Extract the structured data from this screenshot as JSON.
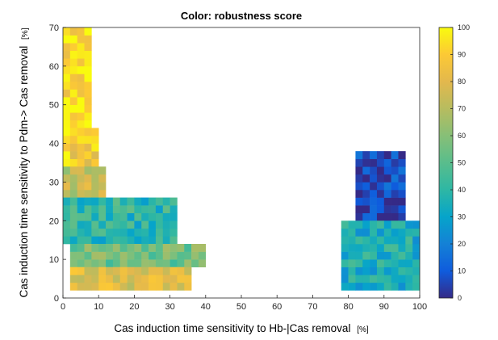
{
  "chart_data": {
    "type": "heatmap",
    "title": "Color: robustness score",
    "xlabel": "Cas induction time sensitivity to Hb-|Cas removal",
    "xlabel_unit": "[%]",
    "ylabel": "Cas induction time sensitivity to Pdm-> Cas removal",
    "ylabel_unit": "[%]",
    "xlim": [
      0,
      100
    ],
    "ylim": [
      0,
      70
    ],
    "xticks": [
      "0",
      "10",
      "20",
      "30",
      "40",
      "50",
      "60",
      "70",
      "80",
      "90",
      "100"
    ],
    "yticks": [
      "0",
      "10",
      "20",
      "30",
      "40",
      "50",
      "60",
      "70"
    ],
    "colorbar": {
      "label": "",
      "range": [
        0,
        100
      ],
      "ticks": [
        "0",
        "10",
        "20",
        "30",
        "40",
        "50",
        "60",
        "70",
        "80",
        "90",
        "100"
      ],
      "colormap": "parula"
    },
    "cell_size": [
      2,
      2
    ],
    "regions": [
      {
        "name": "",
        "x": [
          0,
          8
        ],
        "y": [
          44,
          70
        ],
        "score": 95
      },
      {
        "name": "",
        "x": [
          0,
          10
        ],
        "y": [
          34,
          44
        ],
        "score": 88
      },
      {
        "name": "",
        "x": [
          0,
          12
        ],
        "y": [
          26,
          34
        ],
        "score": 72
      },
      {
        "name": "",
        "x": [
          0,
          32
        ],
        "y": [
          14,
          26
        ],
        "score": 40
      },
      {
        "name": "",
        "x": [
          2,
          40
        ],
        "y": [
          8,
          14
        ],
        "score": 55
      },
      {
        "name": "",
        "x": [
          2,
          36
        ],
        "y": [
          2,
          8
        ],
        "score": 78
      },
      {
        "name": "",
        "x": [
          82,
          96
        ],
        "y": [
          20,
          38
        ],
        "score": 5
      },
      {
        "name": "",
        "x": [
          78,
          100
        ],
        "y": [
          2,
          20
        ],
        "score": 35
      }
    ],
    "grid": false
  }
}
